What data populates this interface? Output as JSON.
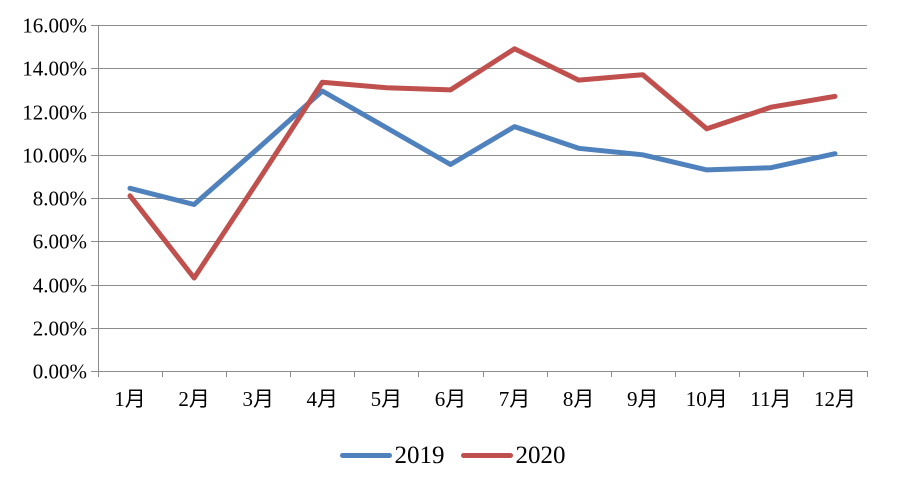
{
  "chart_data": {
    "type": "line",
    "title": "",
    "categories": [
      "1月",
      "2月",
      "3月",
      "4月",
      "5月",
      "6月",
      "7月",
      "8月",
      "9月",
      "10月",
      "11月",
      "12月"
    ],
    "series": [
      {
        "name": "2019",
        "color": "#4F81BD",
        "values": [
          8.45,
          7.7,
          10.3,
          12.95,
          11.25,
          9.55,
          11.3,
          10.3,
          10.0,
          9.3,
          9.4,
          10.05
        ]
      },
      {
        "name": "2020",
        "color": "#C0504D",
        "values": [
          8.1,
          4.3,
          8.8,
          13.35,
          13.1,
          13.0,
          14.9,
          13.45,
          13.7,
          11.2,
          12.2,
          12.7
        ]
      }
    ],
    "xlabel": "",
    "ylabel": "",
    "y_axis": {
      "min": 0,
      "max": 16,
      "step": 2,
      "tick_labels": [
        "0.00%",
        "2.00%",
        "4.00%",
        "6.00%",
        "8.00%",
        "10.00%",
        "12.00%",
        "14.00%",
        "16.00%"
      ],
      "format": "percent"
    },
    "grid": true,
    "legend_position": "bottom",
    "styles": {
      "gridline_color": "#8C8C8C",
      "axis_color": "#8C8C8C",
      "text_color": "#000000",
      "background_color": "#FFFFFF",
      "line_width": 5
    }
  }
}
